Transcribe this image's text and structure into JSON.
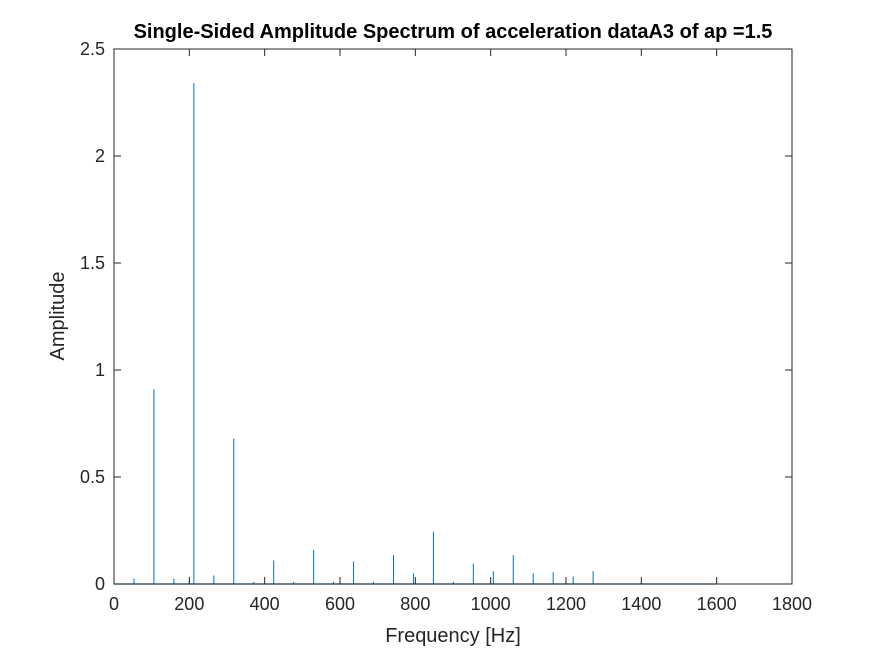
{
  "chart_data": {
    "type": "line",
    "title": "Single-Sided Amplitude Spectrum of acceleration dataA3 of ap =1.5",
    "xlabel": "Frequency [Hz]",
    "ylabel": "Amplitude",
    "xlim": [
      0,
      1800
    ],
    "ylim": [
      0,
      2.5
    ],
    "xticks": [
      0,
      200,
      400,
      600,
      800,
      1000,
      1200,
      1400,
      1600,
      1800
    ],
    "yticks": [
      0,
      0.5,
      1,
      1.5,
      2,
      2.5
    ],
    "xtick_labels": [
      "0",
      "200",
      "400",
      "600",
      "800",
      "1000",
      "1200",
      "1400",
      "1600",
      "1800"
    ],
    "ytick_labels": [
      "0",
      "0.5",
      "1",
      "1.5",
      "2",
      "2.5"
    ],
    "grid": false,
    "box": true,
    "line_color": "#0072BD",
    "spectrum_end_hz": 1600,
    "series": [
      {
        "peaks": [
          {
            "x": 53,
            "y": 0.025
          },
          {
            "x": 106,
            "y": 0.91
          },
          {
            "x": 159,
            "y": 0.025
          },
          {
            "x": 200,
            "y": 0.02
          },
          {
            "x": 212,
            "y": 2.34
          },
          {
            "x": 265,
            "y": 0.04
          },
          {
            "x": 318,
            "y": 0.68
          },
          {
            "x": 371,
            "y": 0.01
          },
          {
            "x": 424,
            "y": 0.11
          },
          {
            "x": 477,
            "y": 0.01
          },
          {
            "x": 530,
            "y": 0.16
          },
          {
            "x": 583,
            "y": 0.01
          },
          {
            "x": 636,
            "y": 0.105
          },
          {
            "x": 689,
            "y": 0.01
          },
          {
            "x": 742,
            "y": 0.135
          },
          {
            "x": 795,
            "y": 0.05
          },
          {
            "x": 848,
            "y": 0.245
          },
          {
            "x": 901,
            "y": 0.01
          },
          {
            "x": 954,
            "y": 0.095
          },
          {
            "x": 1007,
            "y": 0.06
          },
          {
            "x": 1060,
            "y": 0.135
          },
          {
            "x": 1113,
            "y": 0.05
          },
          {
            "x": 1166,
            "y": 0.055
          },
          {
            "x": 1200,
            "y": 0.03
          },
          {
            "x": 1219,
            "y": 0.035
          },
          {
            "x": 1272,
            "y": 0.06
          },
          {
            "x": 1400,
            "y": 0.005
          }
        ]
      }
    ]
  }
}
